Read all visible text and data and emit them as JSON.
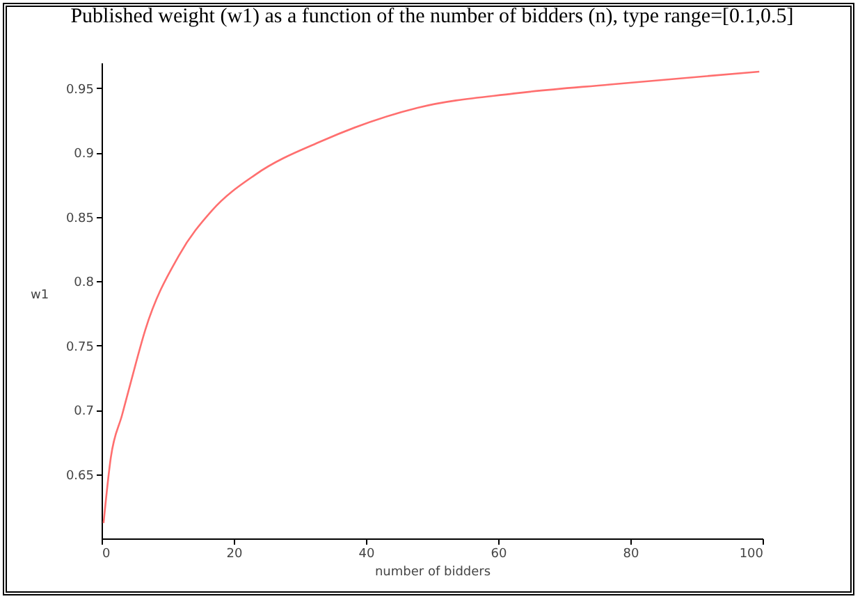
{
  "chart_data": {
    "type": "line",
    "title": "Published weight (w1) as a function of the number of bidders (n), type range=[0.1,0.5]",
    "xlabel": "number of bidders",
    "ylabel": "w1",
    "x": [
      0.3,
      1.4,
      3.1,
      4.5,
      6.6,
      11.7,
      16.7,
      23.3,
      33.3,
      47.9,
      62.4,
      76.9,
      99.5
    ],
    "series": [
      {
        "color": "#ff6f6f",
        "values": [
          0.612,
          0.663,
          0.696,
          0.723,
          0.762,
          0.82,
          0.855,
          0.883,
          0.909,
          0.935,
          0.946,
          0.953,
          0.963
        ]
      }
    ],
    "xlim": [
      0,
      100
    ],
    "xticks": [
      0,
      20,
      40,
      60,
      80,
      100
    ],
    "ylim": [
      0.6,
      0.97
    ],
    "yticks": [
      0.65,
      0.7,
      0.75,
      0.8,
      0.85,
      0.9,
      0.95
    ],
    "grid": false,
    "legend": false,
    "marker": "none",
    "line_style": "solid"
  }
}
